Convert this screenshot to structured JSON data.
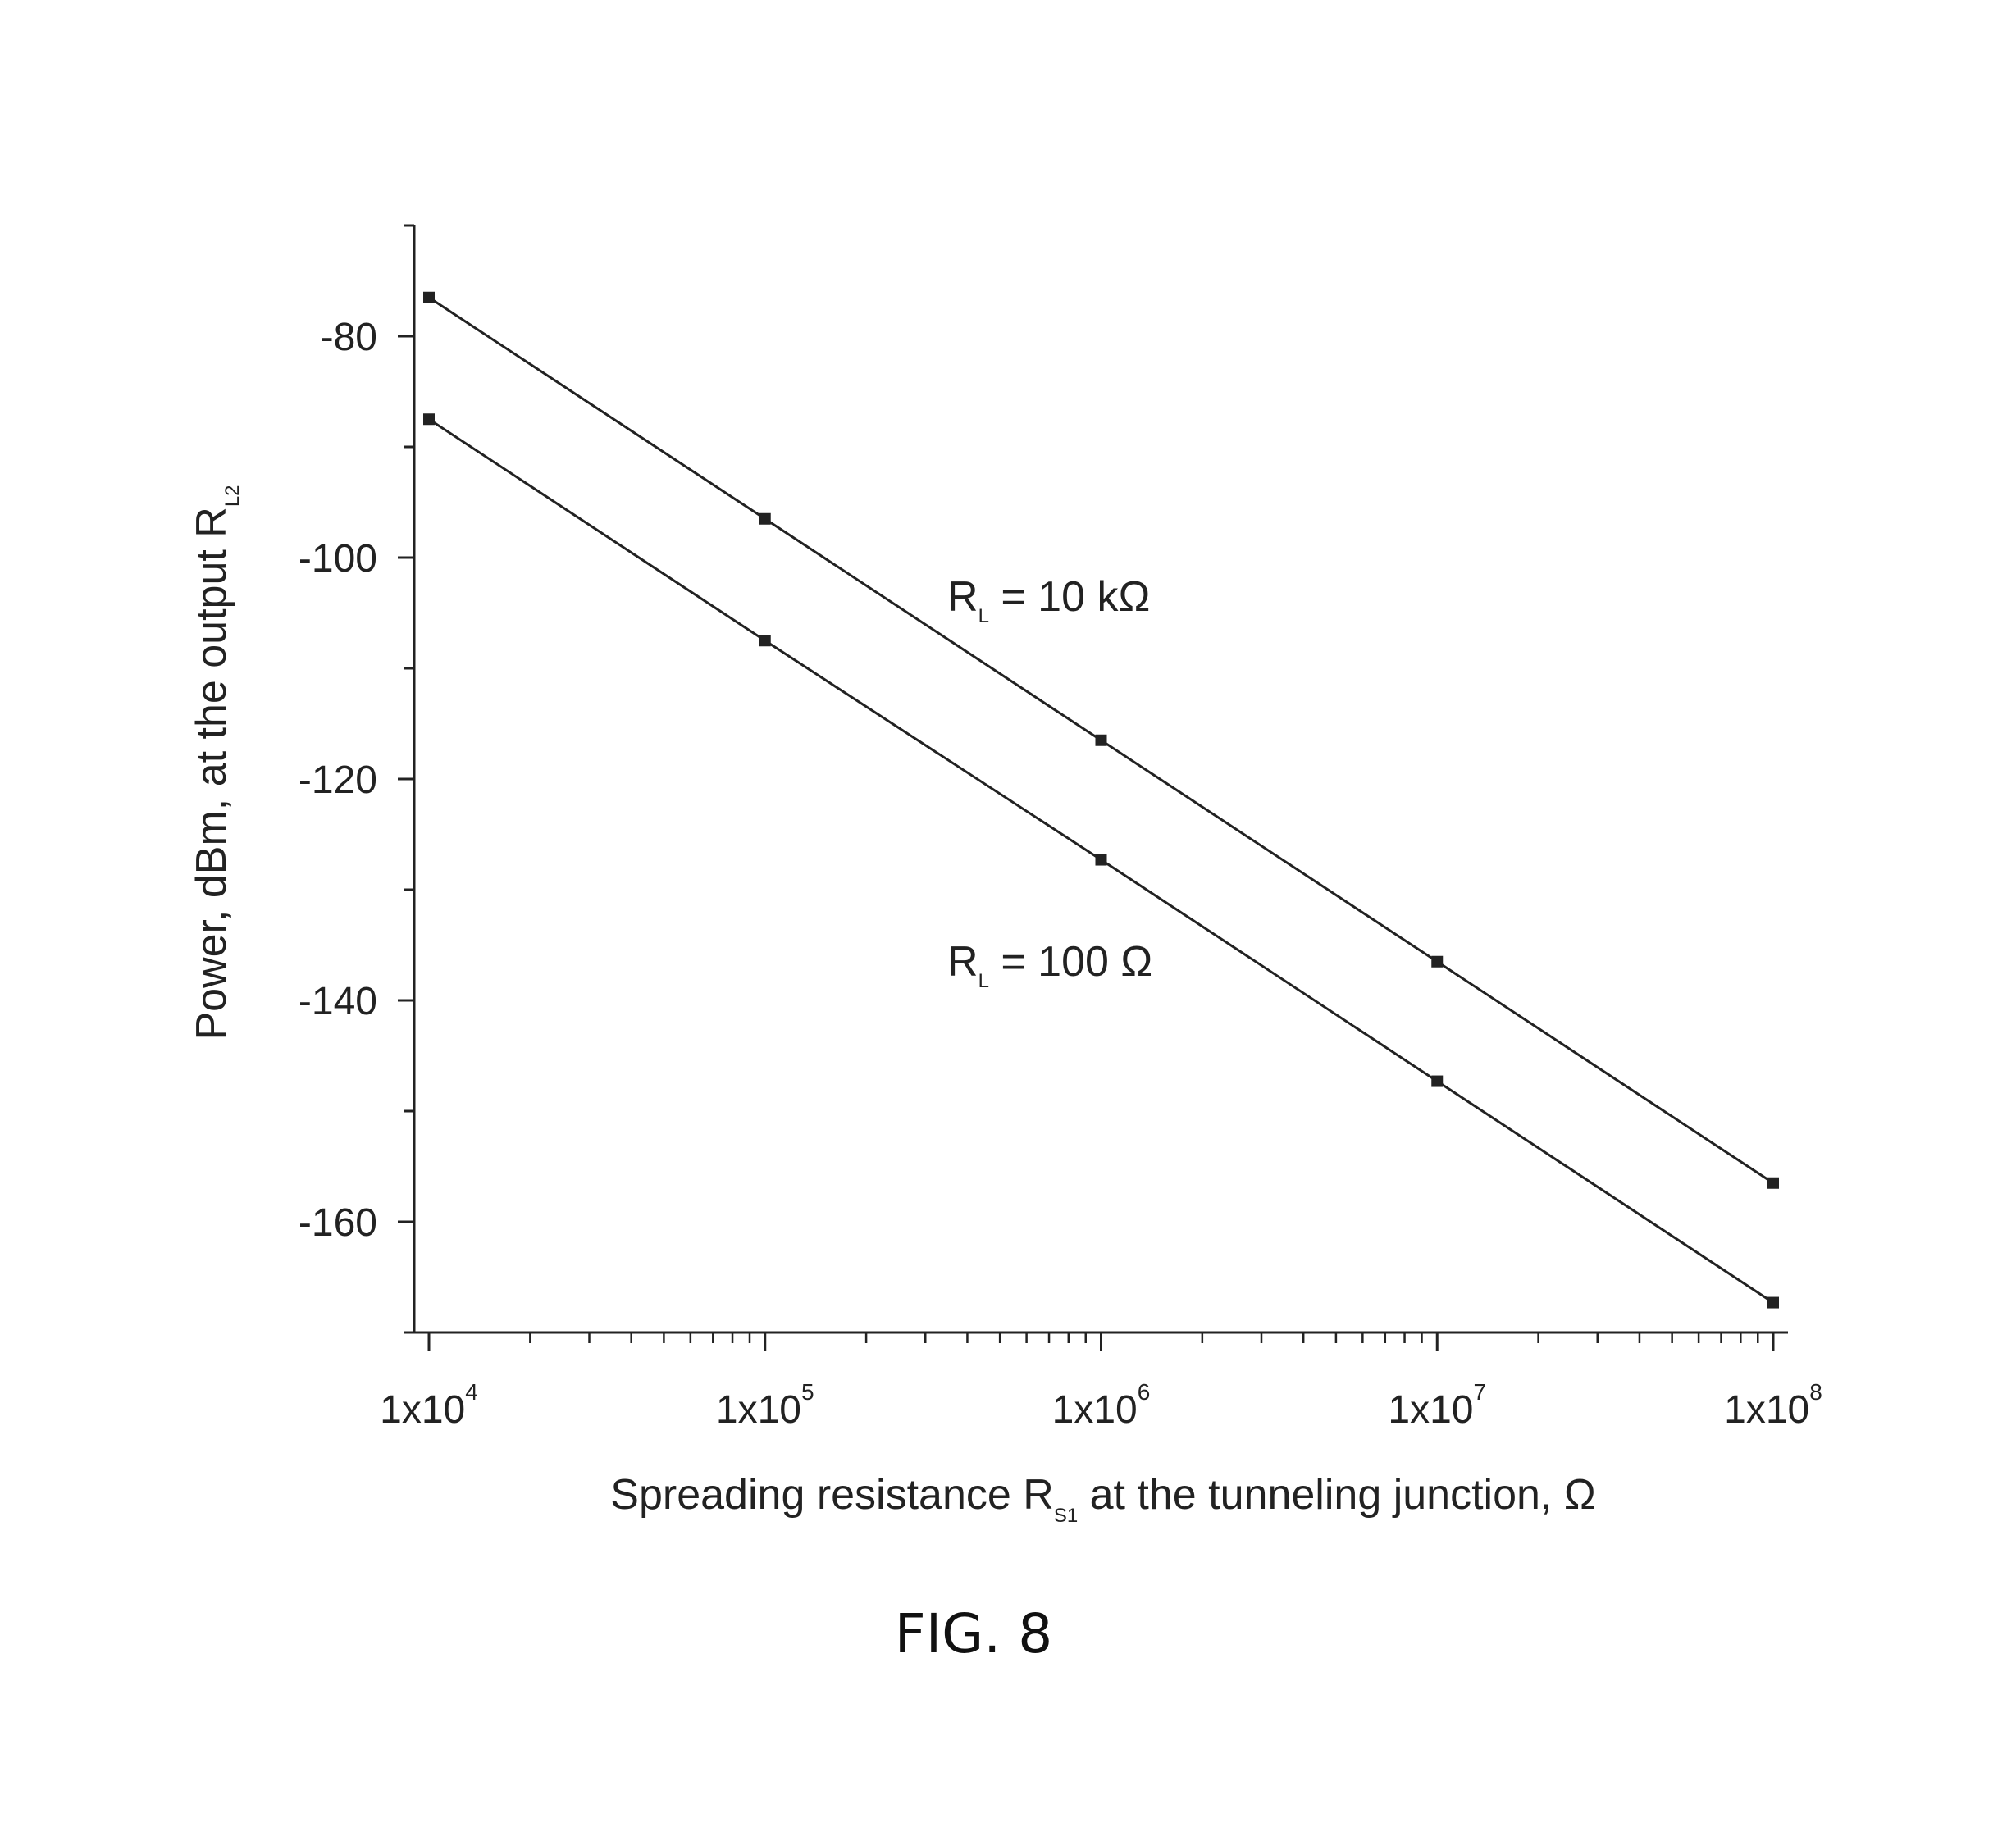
{
  "chart_data": {
    "type": "line",
    "figure_label": "FIG. 8",
    "xlabel": {
      "main": "Spreading resistance R",
      "sub": "S1",
      "rest": " at the tunneling junction,  Ω"
    },
    "ylabel": {
      "main": "Power, dBm, at  the output R",
      "sub": "L2"
    },
    "x_scale": "log",
    "xlim": [
      10000,
      100000000
    ],
    "ylim": [
      -170,
      -70
    ],
    "x_ticks": [
      {
        "value": 10000,
        "base": "1x10",
        "exp": "4"
      },
      {
        "value": 100000,
        "base": "1x10",
        "exp": "5"
      },
      {
        "value": 1000000,
        "base": "1x10",
        "exp": "6"
      },
      {
        "value": 10000000,
        "base": "1x10",
        "exp": "7"
      },
      {
        "value": 100000000,
        "base": "1x10",
        "exp": "8"
      }
    ],
    "y_ticks": [
      {
        "value": -80,
        "label": "-80"
      },
      {
        "value": -100,
        "label": "-100"
      },
      {
        "value": -120,
        "label": "-120"
      },
      {
        "value": -140,
        "label": "-140"
      },
      {
        "value": -160,
        "label": "-160"
      }
    ],
    "grid": false,
    "series": [
      {
        "label": {
          "main": "R",
          "sub": "L",
          "rest": " = 10 kΩ"
        },
        "x": [
          10000,
          100000,
          1000000,
          10000000,
          100000000
        ],
        "y": [
          -76.5,
          -96.5,
          -116.5,
          -136.5,
          -156.5
        ]
      },
      {
        "label": {
          "main": "R",
          "sub": "L",
          "rest": " = 100 Ω"
        },
        "x": [
          10000,
          100000,
          1000000,
          10000000,
          100000000
        ],
        "y": [
          -87.5,
          -107.5,
          -127.3,
          -147.3,
          -167.3
        ]
      }
    ],
    "colors": {
      "line": "#222222",
      "marker": "#222222",
      "axis": "#222222"
    }
  }
}
